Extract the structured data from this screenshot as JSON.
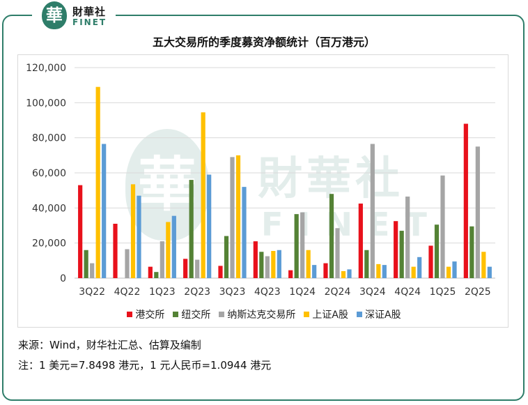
{
  "brand": {
    "seal_char": "華",
    "name_cn": "財華社",
    "name_en": "FINET"
  },
  "watermark": {
    "seal_char": "華",
    "name_cn": "財華社",
    "name_en": "FINET"
  },
  "chart_data": {
    "type": "bar",
    "title": "五大交易所的季度募资净额统计（百万港元）",
    "xlabel": "",
    "ylabel": "",
    "ylim": [
      0,
      120000
    ],
    "yticks": [
      "0",
      "20,000",
      "40,000",
      "60,000",
      "80,000",
      "100,000",
      "120,000"
    ],
    "grid": true,
    "legend_position": "bottom",
    "categories": [
      "3Q22",
      "4Q22",
      "1Q23",
      "2Q23",
      "3Q23",
      "4Q23",
      "1Q24",
      "2Q24",
      "3Q24",
      "4Q24",
      "1Q25",
      "2Q25"
    ],
    "series": [
      {
        "name": "港交所",
        "color": "#e8111b",
        "values": [
          53000,
          31000,
          6500,
          11000,
          7000,
          21000,
          4500,
          8500,
          42500,
          32500,
          18500,
          88000
        ]
      },
      {
        "name": "纽交所",
        "color": "#548235",
        "values": [
          16000,
          0,
          3500,
          56000,
          24000,
          15000,
          36500,
          48000,
          16000,
          27000,
          30500,
          29500
        ]
      },
      {
        "name": "纳斯达克交易所",
        "color": "#a5a5a5",
        "values": [
          8500,
          16500,
          21000,
          10500,
          69000,
          12500,
          37500,
          28500,
          76500,
          46500,
          58500,
          75000
        ]
      },
      {
        "name": "上证A股",
        "color": "#ffc000",
        "values": [
          109000,
          53500,
          32000,
          94500,
          70000,
          15500,
          16000,
          4000,
          8000,
          6500,
          6500,
          15000
        ]
      },
      {
        "name": "深证A股",
        "color": "#5b9bd5",
        "values": [
          76500,
          47000,
          35500,
          59000,
          52000,
          16000,
          7500,
          5000,
          7500,
          12000,
          9500,
          6500
        ]
      }
    ]
  },
  "footer": {
    "source": "来源：Wind，财华社汇总、估算及编制",
    "note": "注：1 美元=7.8498 港元，1 元人民币=1.0944 港元"
  }
}
